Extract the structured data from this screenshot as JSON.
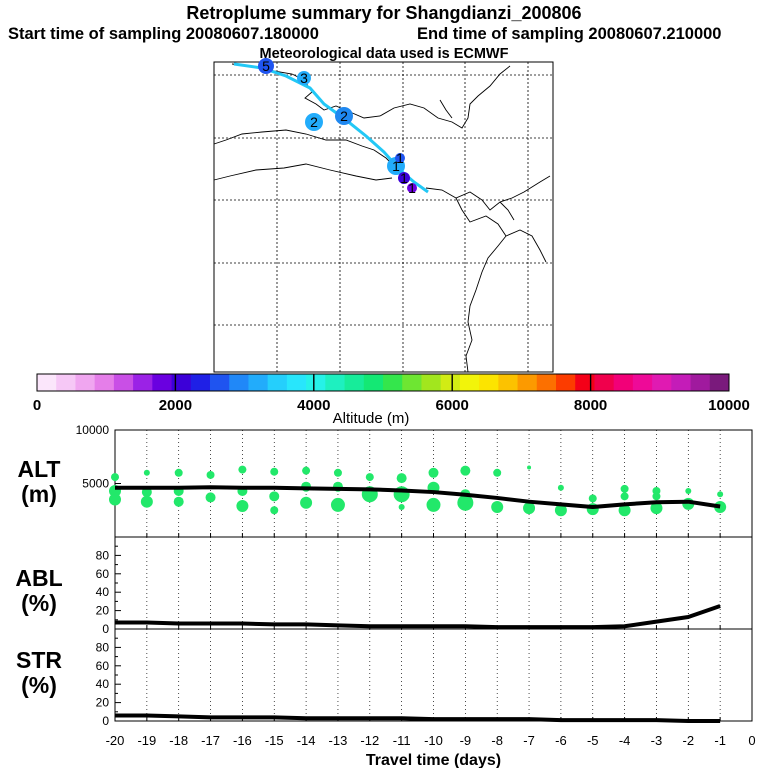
{
  "header": {
    "title": "Retroplume summary for Shangdianzi_200806",
    "start": "Start time of sampling 20080607.180000",
    "end": "End time of sampling 20080607.210000",
    "met": "Meteorological data used is ECMWF"
  },
  "colorbar": {
    "label": "Altitude (m)",
    "ticks": [
      "0",
      "2000",
      "4000",
      "6000",
      "8000",
      "10000"
    ],
    "colors": [
      "#fbe6fb",
      "#f6c8f6",
      "#f0a6f0",
      "#e57ee9",
      "#c94fe6",
      "#9b22e6",
      "#6a00e0",
      "#3c00d8",
      "#1f20e6",
      "#1f54f0",
      "#2088f8",
      "#22acfb",
      "#25cffc",
      "#28e6fc",
      "#26f2e8",
      "#1ef0c0",
      "#17ec9a",
      "#14e874",
      "#34e64c",
      "#6ee632",
      "#a2e61e",
      "#d2ec14",
      "#f2f40a",
      "#fce400",
      "#fcc200",
      "#fc9a00",
      "#fc7000",
      "#fc3c00",
      "#f40018",
      "#f0004c",
      "#f20078",
      "#ee0a98",
      "#e01ab2",
      "#c41cb8",
      "#a01a9e",
      "#7a1a7c"
    ]
  },
  "map": {
    "plume_labels": [
      {
        "text": "5",
        "value": 5
      },
      {
        "text": "3",
        "value": 3
      },
      {
        "text": "2",
        "value": 2
      },
      {
        "text": "2",
        "value": 2
      },
      {
        "text": "1",
        "value": 1
      },
      {
        "text": "1",
        "value": 1
      },
      {
        "text": "1",
        "value": 1
      },
      {
        "text": "1",
        "value": 1
      }
    ]
  },
  "chart_data": {
    "type": "line",
    "xlabel": "Travel time (days)",
    "x_ticks": [
      "-20",
      "-19",
      "-18",
      "-17",
      "-16",
      "-15",
      "-14",
      "-13",
      "-12",
      "-11",
      "-10",
      "-9",
      "-8",
      "-7",
      "-6",
      "-5",
      "-4",
      "-3",
      "-2",
      "-1",
      "0"
    ],
    "xlim": [
      -20,
      0
    ],
    "panels": [
      {
        "label_top": "ALT",
        "label_bottom": "(m)",
        "ylim": [
          0,
          10000
        ],
        "y_ticks": [
          "10000",
          "5000"
        ],
        "y_tick_values": [
          10000,
          5000
        ],
        "line": {
          "x": [
            -20,
            -19,
            -18,
            -17,
            -16,
            -15,
            -14,
            -13,
            -12,
            -11,
            -10,
            -9,
            -8,
            -7,
            -6,
            -5,
            -4,
            -3,
            -2,
            -1
          ],
          "y": [
            4600,
            4600,
            4600,
            4650,
            4600,
            4600,
            4550,
            4500,
            4450,
            4350,
            4200,
            3950,
            3650,
            3300,
            3050,
            2800,
            3050,
            3250,
            3300,
            2850
          ]
        },
        "dots": {
          "color": "#22e86a",
          "x": [
            -20,
            -20,
            -20,
            -19,
            -19,
            -19,
            -18,
            -18,
            -18,
            -17,
            -17,
            -16,
            -16,
            -16,
            -15,
            -15,
            -15,
            -14,
            -14,
            -14,
            -13,
            -13,
            -13,
            -12,
            -12,
            -11,
            -11,
            -11,
            -10,
            -10,
            -10,
            -9,
            -9,
            -9,
            -8,
            -8,
            -7,
            -7,
            -6,
            -6,
            -5,
            -5,
            -4,
            -4,
            -4,
            -3,
            -3,
            -3,
            -2,
            -2,
            -1,
            -1
          ],
          "y": [
            5600,
            4300,
            3500,
            6000,
            4200,
            3300,
            6000,
            4300,
            3300,
            5800,
            3700,
            6300,
            4300,
            2900,
            6100,
            3800,
            2500,
            6200,
            4700,
            3200,
            6000,
            4700,
            3000,
            5600,
            4000,
            5500,
            4000,
            2800,
            6000,
            4600,
            3000,
            6200,
            3200,
            4000,
            6000,
            2800,
            6500,
            2700,
            4600,
            2500,
            3600,
            2600,
            4500,
            3800,
            2500,
            4300,
            3800,
            2700,
            4300,
            3100,
            4000,
            2800
          ],
          "r": [
            4,
            6,
            6,
            3,
            5,
            6,
            4,
            5,
            5,
            4,
            5,
            4,
            5,
            6,
            4,
            5,
            4,
            4,
            5,
            6,
            4,
            5,
            7,
            4,
            8,
            5,
            8,
            3,
            5,
            6,
            7,
            5,
            8,
            5,
            4,
            6,
            2,
            6,
            3,
            6,
            4,
            6,
            4,
            4,
            6,
            4,
            4,
            6,
            3,
            6,
            3,
            6
          ]
        }
      },
      {
        "label_top": "ABL",
        "label_bottom": "(%)",
        "ylim": [
          0,
          100
        ],
        "y_ticks": [
          "80",
          "60",
          "40",
          "20",
          "0"
        ],
        "y_tick_values": [
          80,
          60,
          40,
          20,
          0
        ],
        "line": {
          "x": [
            -20,
            -19,
            -18,
            -17,
            -16,
            -15,
            -14,
            -13,
            -12,
            -11,
            -10,
            -9,
            -8,
            -7,
            -6,
            -5,
            -4,
            -3,
            -2,
            -1
          ],
          "y": [
            7,
            7,
            6,
            6,
            6,
            5,
            5,
            4,
            3,
            3,
            3,
            3,
            2,
            2,
            2,
            2,
            3,
            8,
            13,
            25
          ]
        }
      },
      {
        "label_top": "STR",
        "label_bottom": "(%)",
        "ylim": [
          0,
          100
        ],
        "y_ticks": [
          "80",
          "60",
          "40",
          "20",
          "0"
        ],
        "y_tick_values": [
          80,
          60,
          40,
          20,
          0
        ],
        "line": {
          "x": [
            -20,
            -19,
            -18,
            -17,
            -16,
            -15,
            -14,
            -13,
            -12,
            -11,
            -10,
            -9,
            -8,
            -7,
            -6,
            -5,
            -4,
            -3,
            -2,
            -1
          ],
          "y": [
            6,
            6,
            5,
            4,
            4,
            4,
            3,
            3,
            3,
            3,
            2,
            2,
            2,
            2,
            1,
            1,
            1,
            1,
            0,
            0
          ]
        }
      }
    ]
  }
}
